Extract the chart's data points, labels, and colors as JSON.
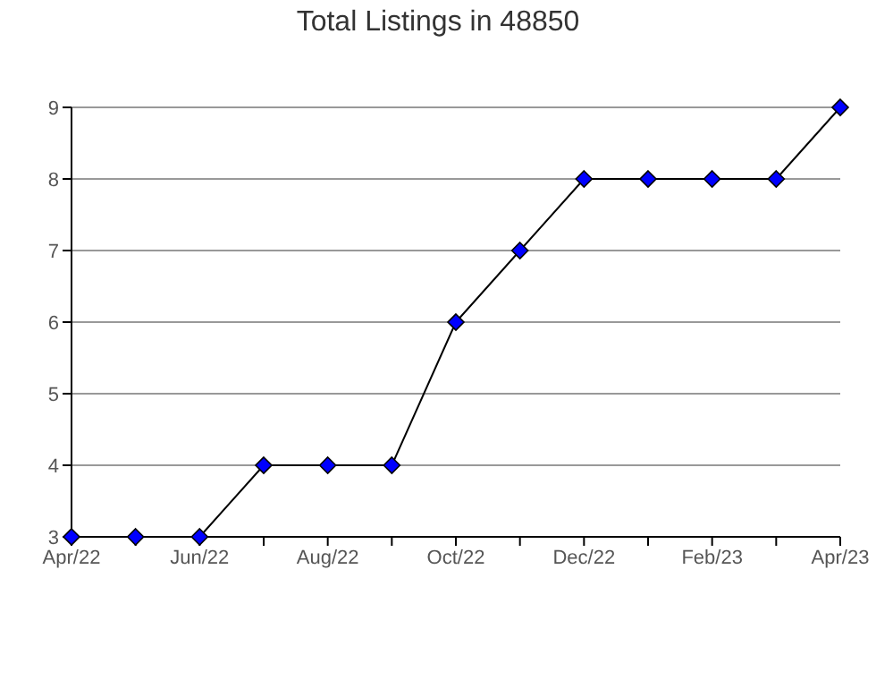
{
  "chart_data": {
    "type": "line",
    "title": "Total Listings in 48850",
    "categories": [
      "Apr/22",
      null,
      "Jun/22",
      null,
      "Aug/22",
      null,
      "Oct/22",
      null,
      "Dec/22",
      null,
      "Feb/23",
      null,
      "Apr/23"
    ],
    "series": [
      {
        "color": "#0000ff",
        "values": [
          3,
          3,
          3,
          4,
          4,
          4,
          6,
          7,
          8,
          8,
          8,
          8,
          9
        ]
      }
    ],
    "ylim": [
      3,
      9
    ],
    "yticks": [
      3,
      4,
      5,
      6,
      7,
      8,
      9
    ],
    "grid": "y",
    "marker": "diamond",
    "line_style": "solid"
  }
}
